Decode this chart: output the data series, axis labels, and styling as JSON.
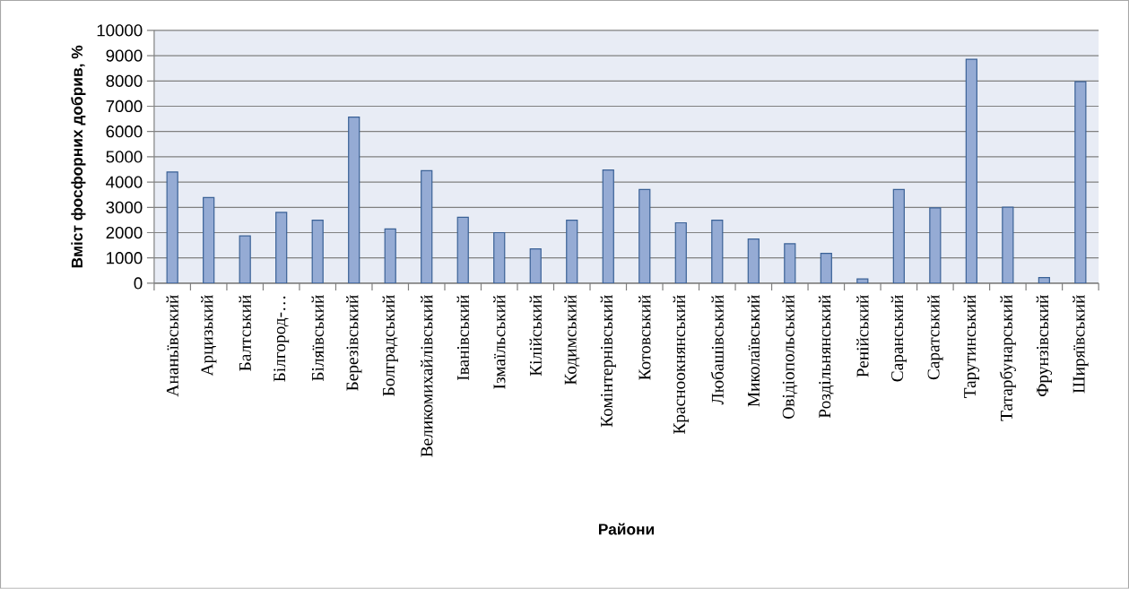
{
  "chart_data": {
    "type": "bar",
    "xlabel": "Райони",
    "ylabel": "Вміст фосфорних добрив, %",
    "categories": [
      "Ананьївський",
      "Арцизький",
      "Балтський",
      "Білгород-…",
      "Біляївський",
      "Березівський",
      "Болградський",
      "Великомихайлівський",
      "Іванівський",
      "Ізмаїльський",
      "Кілійський",
      "Кодимський",
      "Комінтернівський",
      "Котовський",
      "Красноокнянський",
      "Любашівський",
      "Миколаївський",
      "Овідіопольський",
      "Роздільнянський",
      "Ренійський",
      "Саранський",
      "Саратський",
      "Тарутинський",
      "Татарбунарський",
      "Фрунзівський",
      "Ширяївський"
    ],
    "values": [
      4400,
      3390,
      1870,
      2800,
      2490,
      6570,
      2150,
      4450,
      2610,
      2000,
      1360,
      2490,
      4480,
      3710,
      2390,
      2490,
      1750,
      1560,
      1180,
      170,
      3710,
      2980,
      8860,
      3010,
      220,
      7970
    ],
    "color": "#95abd4",
    "ylim": [
      0,
      10000
    ],
    "yticks": [
      0,
      1000,
      2000,
      3000,
      4000,
      5000,
      6000,
      7000,
      8000,
      9000,
      10000
    ],
    "grid": "y"
  }
}
